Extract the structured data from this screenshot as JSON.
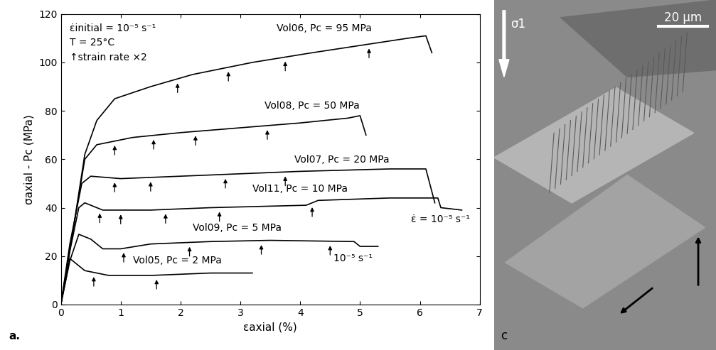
{
  "chart_data": {
    "type": "line",
    "x_label": "εaxial (%)",
    "y_label": "σaxial - Pc (MPa)",
    "xlim": [
      0,
      7
    ],
    "xticks": [
      0,
      1,
      2,
      3,
      4,
      5,
      6,
      7
    ],
    "ylim": [
      0,
      120
    ],
    "yticks": [
      0,
      20,
      40,
      60,
      80,
      100,
      120
    ],
    "grid": false,
    "annotations": [
      "ε̇initial = 10⁻⁵ s⁻¹",
      "T = 25°C",
      "↑strain rate ×2",
      "ε̇ = 10⁻⁵ s⁻¹",
      "10⁻⁵ s⁻¹",
      "a."
    ],
    "series": [
      {
        "name": "Vol06, Pc = 95 MPa",
        "color": "#000000",
        "x": [
          0,
          0.2,
          0.4,
          0.6,
          0.9,
          1.5,
          2.2,
          3.2,
          4.2,
          5.0,
          5.8,
          6.1,
          6.2
        ],
        "values": [
          0,
          30,
          62,
          76,
          85,
          90,
          95,
          100,
          104,
          107,
          110,
          111,
          104
        ],
        "strain_rate_steps": [
          1.95,
          2.8,
          3.75,
          5.15
        ]
      },
      {
        "name": "Vol08, Pc = 50 MPa",
        "color": "#000000",
        "x": [
          0,
          0.2,
          0.4,
          0.6,
          1.2,
          2.0,
          3.0,
          4.0,
          4.8,
          5.0,
          5.1
        ],
        "values": [
          0,
          30,
          60,
          66,
          69,
          71,
          73,
          75,
          77,
          78,
          70
        ],
        "strain_rate_steps": [
          0.9,
          1.55,
          2.25,
          3.45
        ]
      },
      {
        "name": "Vol07, Pc = 20 MPa",
        "color": "#000000",
        "x": [
          0,
          0.15,
          0.35,
          0.5,
          1.0,
          2.0,
          3.0,
          4.0,
          5.5,
          6.1,
          6.25
        ],
        "values": [
          0,
          25,
          50,
          53,
          52,
          53,
          54,
          55,
          56,
          56,
          42
        ],
        "strain_rate_steps": [
          0.9,
          1.5,
          2.75,
          3.75
        ]
      },
      {
        "name": "Vol11, Pc = 10 MPa",
        "color": "#000000",
        "x": [
          0,
          0.15,
          0.3,
          0.4,
          0.7,
          1.5,
          2.5,
          4.1,
          4.3,
          5.5,
          6.3,
          6.35,
          6.7
        ],
        "values": [
          0,
          22,
          40,
          42,
          39,
          39,
          40,
          41,
          43,
          44,
          44,
          40,
          39
        ],
        "strain_rate_steps": [
          0.65,
          1.0,
          1.75,
          2.65,
          4.2
        ]
      },
      {
        "name": "Vol09, Pc = 5 MPa",
        "color": "#000000",
        "x": [
          0,
          0.15,
          0.3,
          0.5,
          0.7,
          1.0,
          1.5,
          2.5,
          3.5,
          4.9,
          5.0,
          5.3
        ],
        "values": [
          0,
          18,
          29,
          27,
          23,
          23,
          25,
          26,
          26.5,
          26,
          24,
          24
        ],
        "strain_rate_steps": [
          1.05,
          2.15,
          3.35,
          4.5
        ]
      },
      {
        "name": "Vol05, Pc = 2 MPa",
        "color": "#000000",
        "x": [
          0,
          0.08,
          0.15,
          0.4,
          0.8,
          1.5,
          2.5,
          3.2
        ],
        "values": [
          0,
          10,
          19,
          14,
          12,
          12,
          13,
          13
        ],
        "strain_rate_steps": [
          0.55,
          1.6
        ]
      }
    ]
  },
  "image_panel": {
    "label": "c",
    "stress_label": "σ1",
    "scale_bar": "20 µm"
  }
}
